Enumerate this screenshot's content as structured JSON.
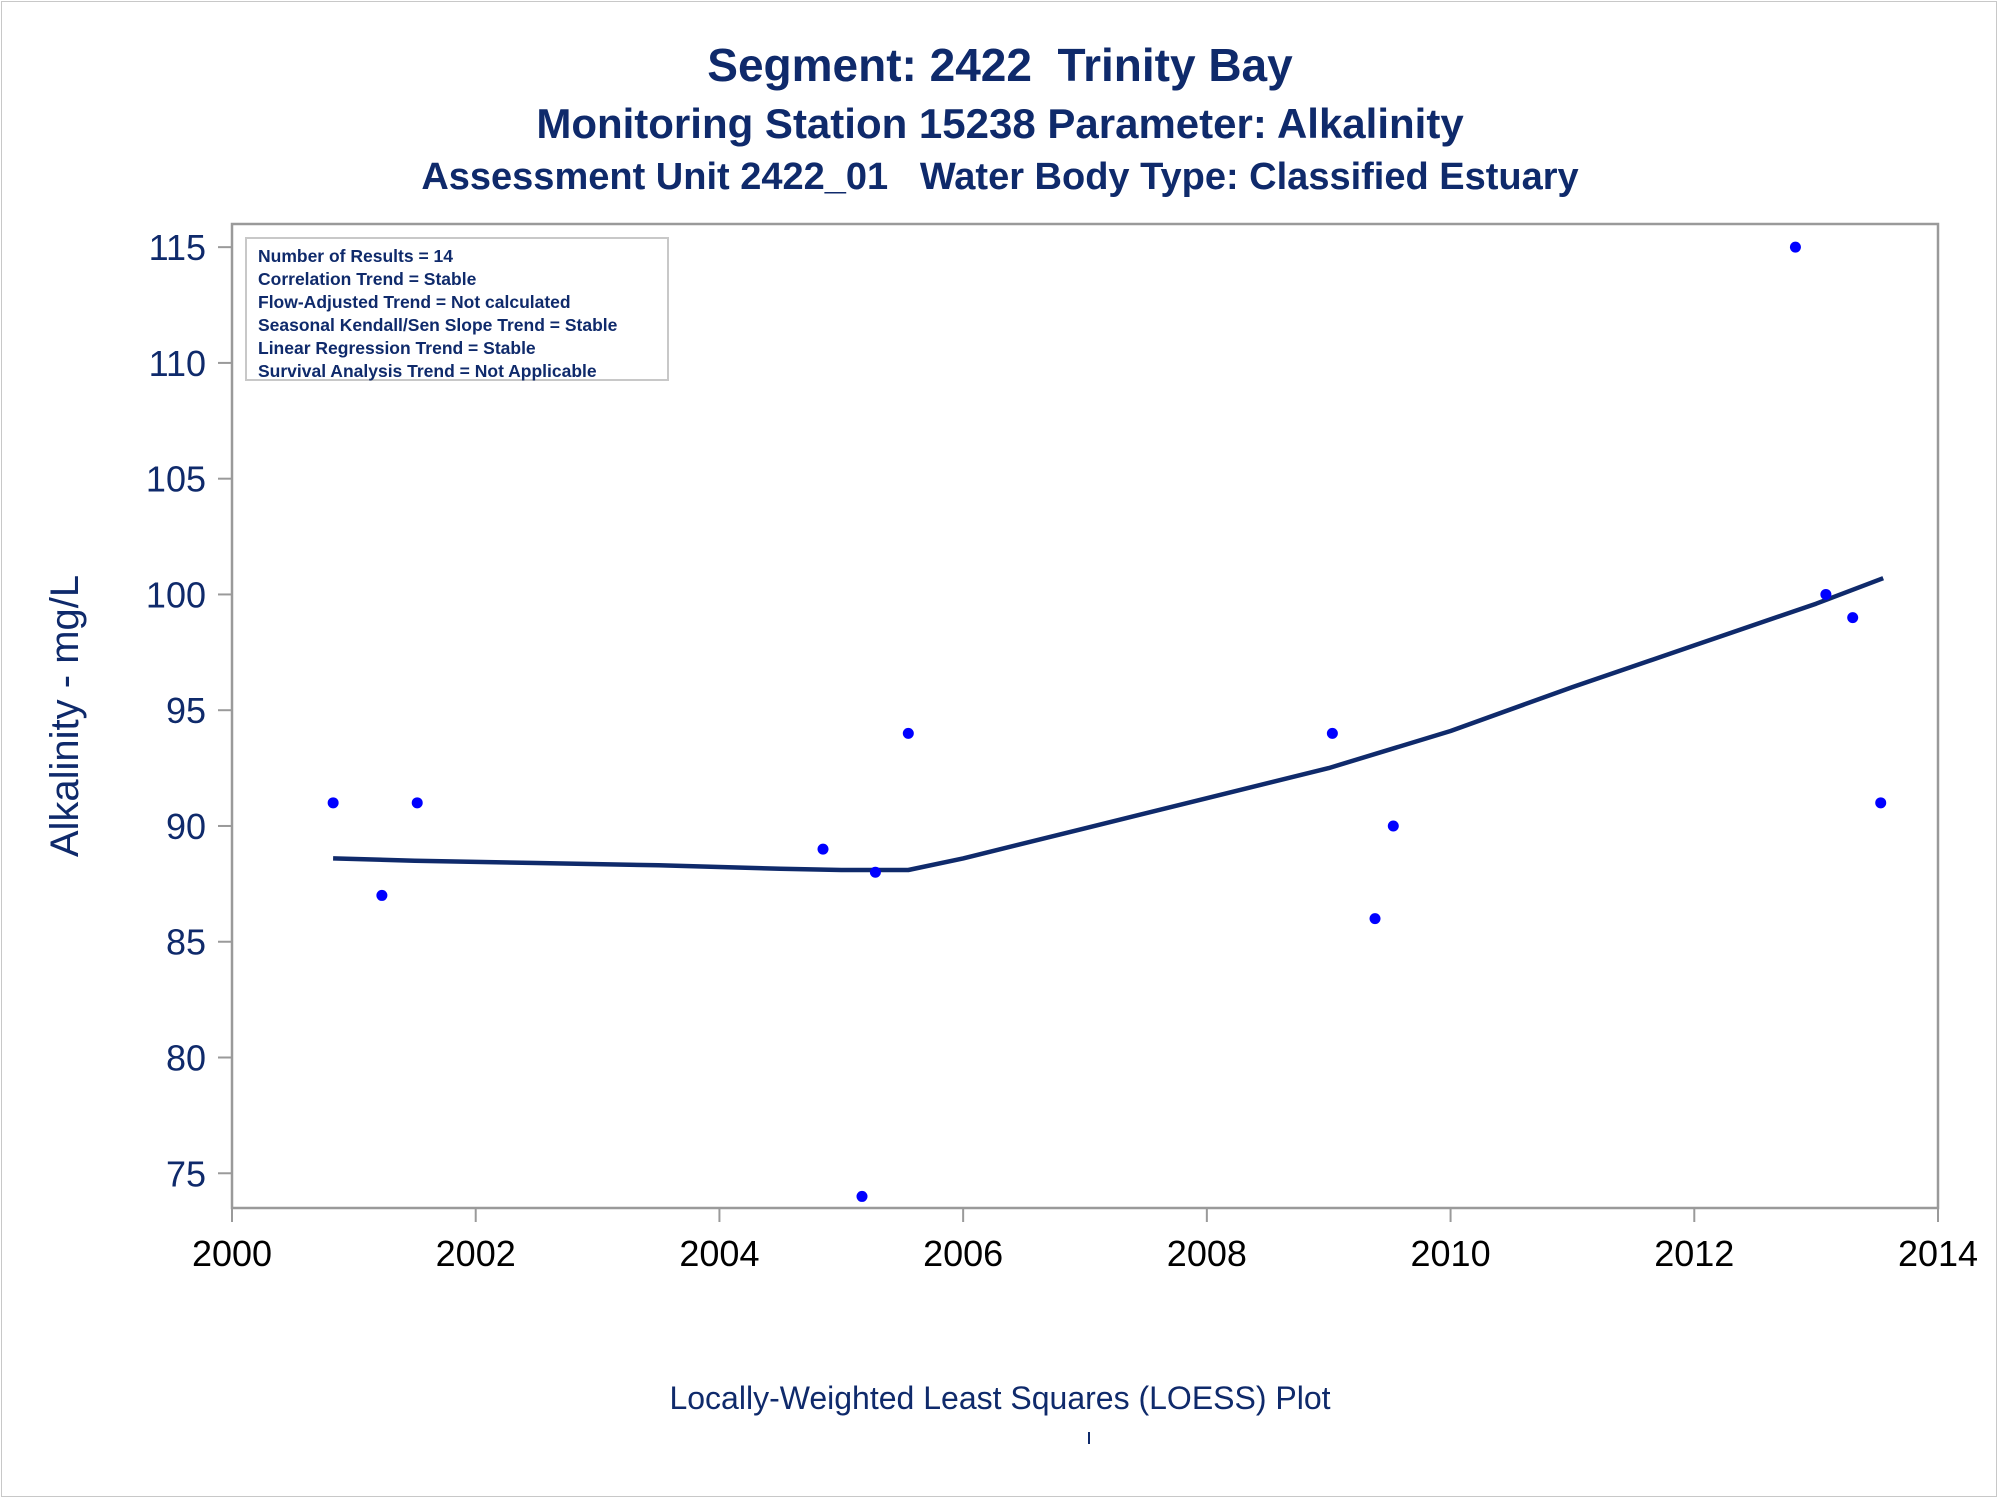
{
  "titles": {
    "line1": "Segment: 2422  Trinity Bay",
    "line2": "Monitoring Station 15238 Parameter: Alkalinity",
    "line3": "Assessment Unit 2422_01   Water Body Type: Classified Estuary"
  },
  "footnote": "Locally-Weighted Least Squares (LOESS) Plot",
  "colors": {
    "title": "#0f2a6b",
    "axis": "#0f2a6b",
    "points": "#0000ff",
    "loess": "#0f2a6b",
    "frame": "#9a9a9a"
  },
  "chart_data": {
    "type": "scatter",
    "ylabel": "Alkalinity - mg/L",
    "xlabel": "",
    "x_ticks": [
      "2000",
      "2002",
      "2004",
      "2006",
      "2008",
      "2010",
      "2012",
      "2014"
    ],
    "y_ticks": [
      "75",
      "80",
      "85",
      "90",
      "95",
      "100",
      "105",
      "110",
      "115"
    ],
    "xlim": [
      2000,
      2014
    ],
    "ylim": [
      73.5,
      116
    ],
    "legend_placement": "top-left",
    "stats_box": [
      "Number of Results = 14",
      "Correlation Trend = Stable",
      "Flow-Adjusted Trend = Not calculated",
      "Seasonal Kendall/Sen Slope Trend = Stable",
      "Linear Regression Trend = Stable",
      "Survival Analysis Trend = Not Applicable"
    ],
    "series": [
      {
        "kind": "points",
        "x": [
          2000.83,
          2001.23,
          2001.52,
          2004.85,
          2005.17,
          2005.28,
          2005.55,
          2009.03,
          2009.38,
          2009.53,
          2012.83,
          2013.08,
          2013.3,
          2013.53
        ],
        "y": [
          91,
          87,
          91,
          89,
          74,
          88,
          94,
          94,
          86,
          90,
          115,
          100,
          99,
          91
        ]
      },
      {
        "kind": "loess",
        "x": [
          2000.83,
          2001.5,
          2002.5,
          2003.5,
          2004.5,
          2005.0,
          2005.55,
          2006.0,
          2007.0,
          2008.0,
          2009.0,
          2010.0,
          2011.0,
          2012.0,
          2013.0,
          2013.55
        ],
        "y": [
          88.6,
          88.5,
          88.4,
          88.3,
          88.15,
          88.1,
          88.1,
          88.6,
          89.9,
          91.2,
          92.5,
          94.1,
          96.0,
          97.8,
          99.6,
          100.7
        ]
      }
    ]
  }
}
